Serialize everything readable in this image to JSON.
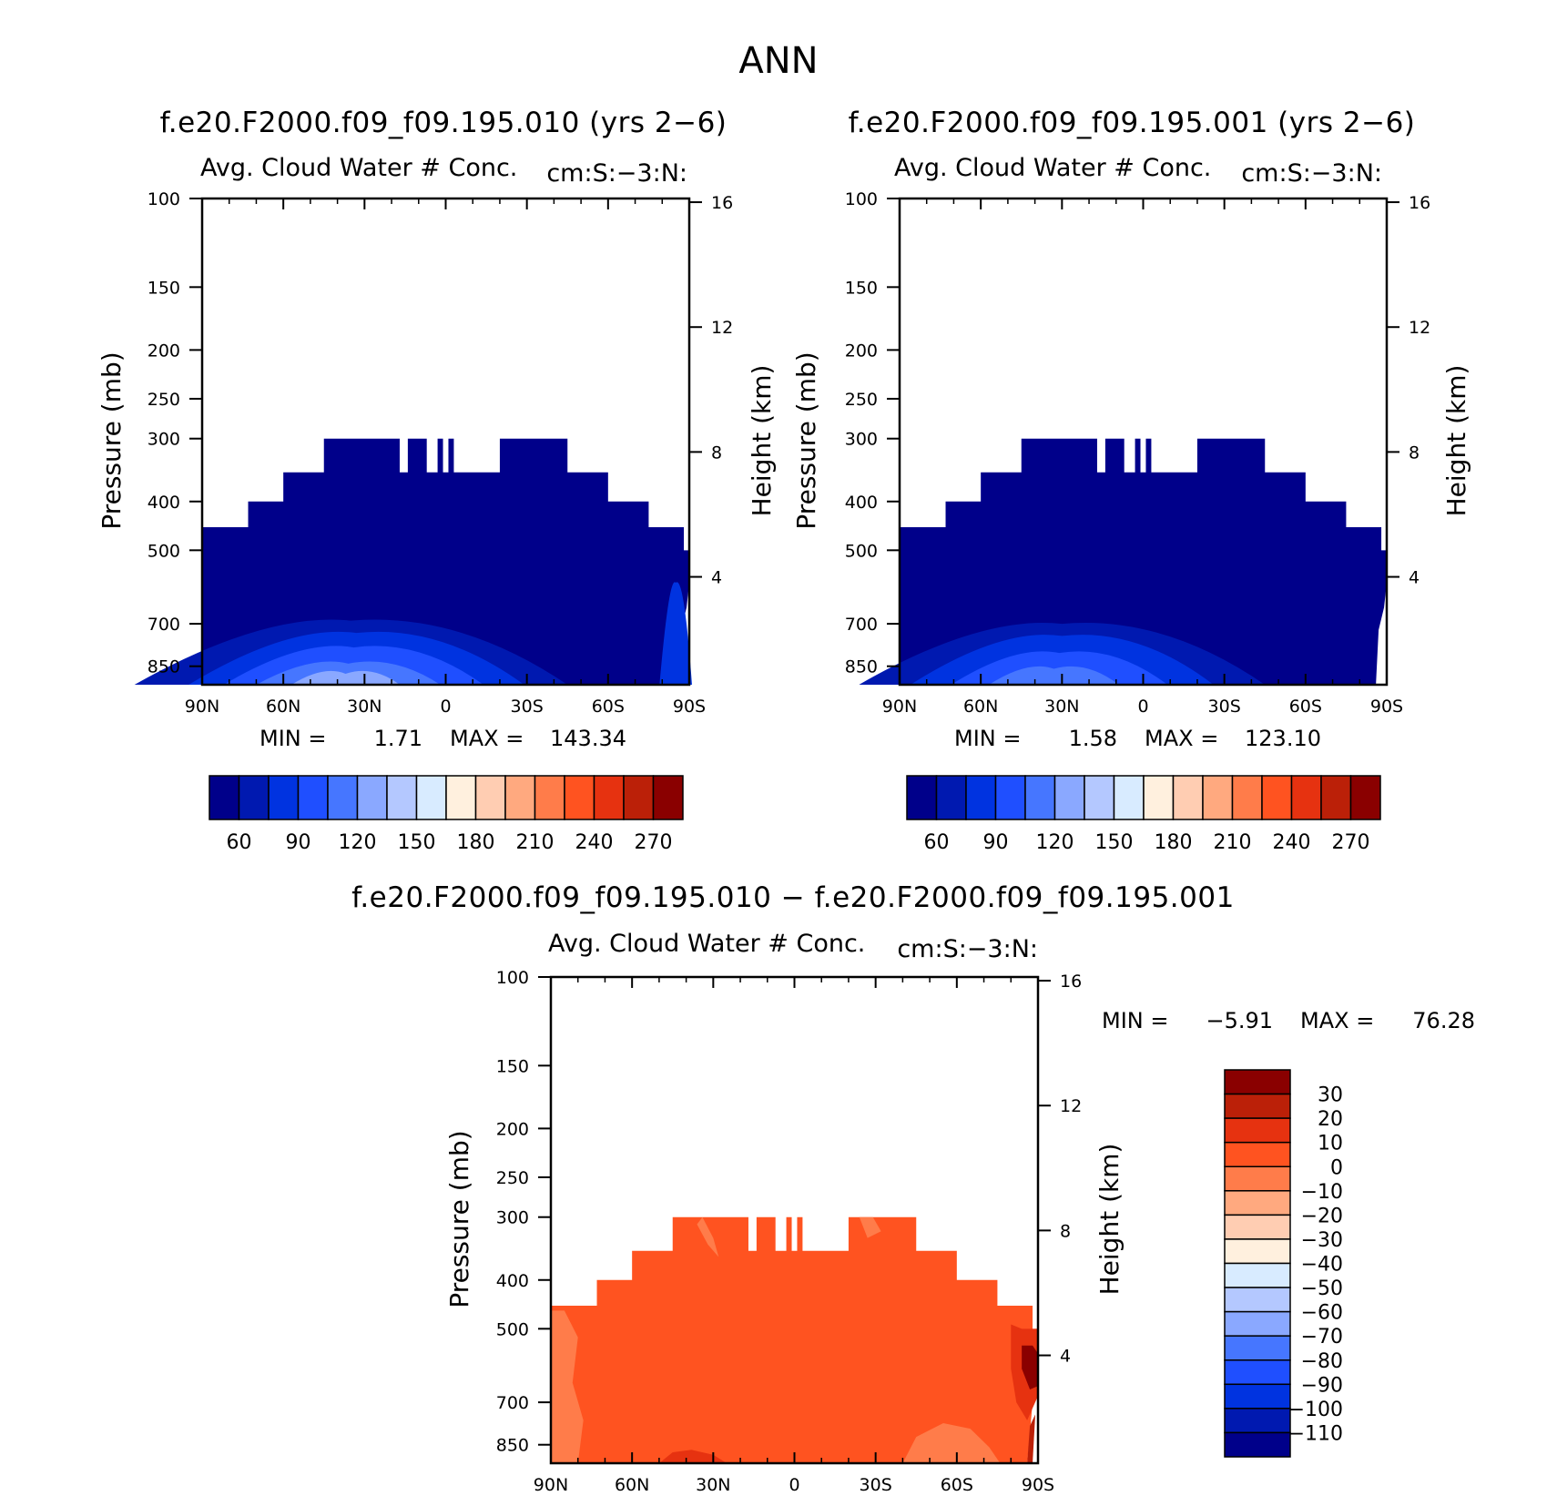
{
  "figure": {
    "title": "ANN"
  },
  "colors": {
    "model1_scale": [
      "#00008a",
      "#0019b0",
      "#0033e0",
      "#1f4fff",
      "#4676ff",
      "#8aa8ff",
      "#b4c8ff",
      "#d8ebff",
      "#fff0de",
      "#ffcdb2",
      "#ffa97f",
      "#ff7c4a",
      "#ff5320",
      "#e63210",
      "#bb2008",
      "#8a0000"
    ],
    "diff_scale": [
      "#00008a",
      "#0019b0",
      "#0033e0",
      "#1f4fff",
      "#4676ff",
      "#8aa8ff",
      "#b4c8ff",
      "#d8ebff",
      "#fff0de",
      "#ffcdb2",
      "#ffa97f",
      "#ff7c4a",
      "#ff5320",
      "#e63210",
      "#bb2008",
      "#8a0000"
    ]
  },
  "chart_data": [
    {
      "type": "heatmap",
      "title": "f.e20.F2000.f09_f09.195.010 (yrs 2−6)",
      "field_label": "Avg. Cloud Water # Conc.",
      "units": "cm:S:−3:N:",
      "ylabel_left": "Pressure (mb)",
      "ylabel_right": "Height (km)",
      "x_ticks": [
        "90N",
        "60N",
        "30N",
        "0",
        "30S",
        "60S",
        "90S"
      ],
      "y_ticks": [
        "100",
        "150",
        "200",
        "250",
        "300",
        "400",
        "500",
        "700",
        "850"
      ],
      "y_ticks_right": [
        "16",
        "12",
        "8",
        "4"
      ],
      "min_label": "MIN =",
      "min_value": "1.71",
      "max_label": "MAX =",
      "max_value": "143.34",
      "colorbar_labels": [
        "60",
        "90",
        "120",
        "150",
        "180",
        "210",
        "240",
        "270"
      ]
    },
    {
      "type": "heatmap",
      "title": "f.e20.F2000.f09_f09.195.001 (yrs 2−6)",
      "field_label": "Avg. Cloud Water # Conc.",
      "units": "cm:S:−3:N:",
      "ylabel_left": "Pressure (mb)",
      "ylabel_right": "Height (km)",
      "x_ticks": [
        "90N",
        "60N",
        "30N",
        "0",
        "30S",
        "60S",
        "90S"
      ],
      "y_ticks": [
        "100",
        "150",
        "200",
        "250",
        "300",
        "400",
        "500",
        "700",
        "850"
      ],
      "y_ticks_right": [
        "16",
        "12",
        "8",
        "4"
      ],
      "min_label": "MIN =",
      "min_value": "1.58",
      "max_label": "MAX =",
      "max_value": "123.10",
      "colorbar_labels": [
        "60",
        "90",
        "120",
        "150",
        "180",
        "210",
        "240",
        "270"
      ]
    },
    {
      "type": "heatmap",
      "title": "f.e20.F2000.f09_f09.195.010 − f.e20.F2000.f09_f09.195.001",
      "field_label": "Avg. Cloud Water # Conc.",
      "units": "cm:S:−3:N:",
      "ylabel_left": "Pressure (mb)",
      "ylabel_right": "Height (km)",
      "x_ticks": [
        "90N",
        "60N",
        "30N",
        "0",
        "30S",
        "60S",
        "90S"
      ],
      "y_ticks": [
        "100",
        "150",
        "200",
        "250",
        "300",
        "400",
        "500",
        "700",
        "850"
      ],
      "y_ticks_right": [
        "16",
        "12",
        "8",
        "4"
      ],
      "min_label": "MIN =",
      "min_value": "−5.91",
      "max_label": "MAX =",
      "max_value": "76.28",
      "colorbar_labels": [
        "30",
        "20",
        "10",
        "0",
        "−10",
        "−20",
        "−30",
        "−40",
        "−50",
        "−60",
        "−70",
        "−80",
        "−90",
        "−100",
        "−110"
      ]
    }
  ]
}
